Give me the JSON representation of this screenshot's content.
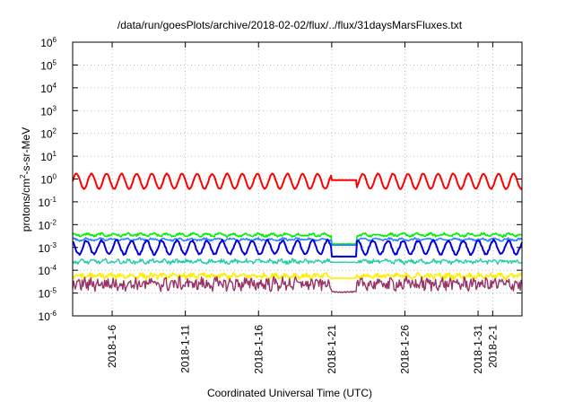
{
  "chart_data": {
    "type": "line",
    "title": "/data/run/goesPlots/archive/2018-02-02/flux/../flux/31daysMarsFluxes.txt",
    "xlabel": "Coordinated Universal Time (UTC)",
    "ylabel_parts": [
      "protons/cm",
      "2",
      "-s-sr-MeV"
    ],
    "yscale": "log",
    "ylim_exp": [
      -6,
      6
    ],
    "y_ticks": [
      {
        "base": "10",
        "exp": "-6",
        "e": -6
      },
      {
        "base": "10",
        "exp": "-5",
        "e": -5
      },
      {
        "base": "10",
        "exp": "-4",
        "e": -4
      },
      {
        "base": "10",
        "exp": "-3",
        "e": -3
      },
      {
        "base": "10",
        "exp": "-2",
        "e": -2
      },
      {
        "base": "10",
        "exp": "-1",
        "e": -1
      },
      {
        "base": "10",
        "exp": "0",
        "e": 0
      },
      {
        "base": "10",
        "exp": "1",
        "e": 1
      },
      {
        "base": "10",
        "exp": "2",
        "e": 2
      },
      {
        "base": "10",
        "exp": "3",
        "e": 3
      },
      {
        "base": "10",
        "exp": "4",
        "e": 4
      },
      {
        "base": "10",
        "exp": "5",
        "e": 5
      },
      {
        "base": "10",
        "exp": "6",
        "e": 6
      }
    ],
    "xlim_days": [
      3.3,
      34.0
    ],
    "x_ticks": [
      {
        "label": "2018-1-6",
        "day": 6
      },
      {
        "label": "2018-1-11",
        "day": 11
      },
      {
        "label": "2018-1-16",
        "day": 16
      },
      {
        "label": "2018-1-21",
        "day": 21
      },
      {
        "label": "2018-1-26",
        "day": 26
      },
      {
        "label": "2018-1-31",
        "day": 31
      },
      {
        "label": "2018-2-1",
        "day": 32
      }
    ],
    "grid": true,
    "series": [
      {
        "color": "#ff0000",
        "base": -0.1,
        "amp": 0.33,
        "period": 1.03,
        "noise": 0.02,
        "gap_level": -0.05,
        "stroke": 2.0
      },
      {
        "color": "#00ee00",
        "base": -2.45,
        "amp": 0.05,
        "period": 0.9,
        "noise": 0.05,
        "gap_level": -2.85,
        "stroke": 1.6
      },
      {
        "color": "#2f7fff",
        "base": -2.65,
        "amp": 0.04,
        "period": 0.9,
        "noise": 0.04,
        "gap_level": -2.9,
        "stroke": 1.6
      },
      {
        "color": "#0000dd",
        "base": -3.0,
        "amp": 0.3,
        "period": 1.03,
        "noise": 0.04,
        "gap_level": -3.4,
        "stroke": 2.0
      },
      {
        "color": "#22ccaa",
        "base": -3.62,
        "amp": 0.05,
        "period": 0.8,
        "noise": 0.08,
        "gap_level": -3.65,
        "stroke": 1.4
      },
      {
        "color": "#ffee00",
        "base": -4.25,
        "amp": 0.06,
        "period": 0.7,
        "noise": 0.1,
        "gap_level": -4.35,
        "stroke": 1.6
      },
      {
        "color": "#993366",
        "base": -4.6,
        "amp": 0.1,
        "period": 0.5,
        "noise": 0.25,
        "gap_level": -4.95,
        "stroke": 1.4
      }
    ],
    "gap_days": [
      21.0,
      22.7
    ]
  }
}
